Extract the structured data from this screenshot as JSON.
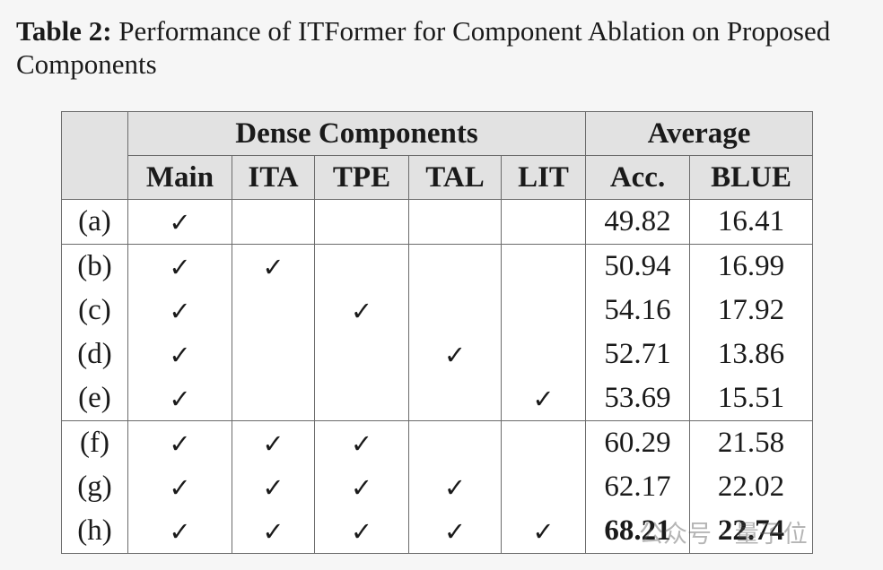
{
  "caption": {
    "label": "Table 2:",
    "text": "Performance of ITFormer for Component Ablation on Proposed Components"
  },
  "table": {
    "group_headers": [
      "Dense Components",
      "Average"
    ],
    "column_headers": [
      "Main",
      "ITA",
      "TPE",
      "TAL",
      "LIT",
      "Acc.",
      "BLUE"
    ],
    "groups": [
      [
        {
          "label": "(a)",
          "cells": [
            "✓",
            null,
            null,
            null,
            null,
            "49.82",
            "16.41"
          ]
        }
      ],
      [
        {
          "label": "(b)",
          "cells": [
            "✓",
            "✓",
            null,
            null,
            null,
            "50.94",
            "16.99"
          ]
        },
        {
          "label": "(c)",
          "cells": [
            "✓",
            null,
            "✓",
            null,
            null,
            "54.16",
            "17.92"
          ]
        },
        {
          "label": "(d)",
          "cells": [
            "✓",
            null,
            null,
            "✓",
            null,
            "52.71",
            "13.86"
          ]
        },
        {
          "label": "(e)",
          "cells": [
            "✓",
            null,
            null,
            null,
            "✓",
            "53.69",
            "15.51"
          ]
        }
      ],
      [
        {
          "label": "(f)",
          "cells": [
            "✓",
            "✓",
            "✓",
            null,
            null,
            "60.29",
            "21.58"
          ]
        },
        {
          "label": "(g)",
          "cells": [
            "✓",
            "✓",
            "✓",
            "✓",
            null,
            "62.17",
            "22.02"
          ]
        },
        {
          "label": "(h)",
          "cells": [
            "✓",
            "✓",
            "✓",
            "✓",
            "✓",
            "68.21",
            "22.74"
          ],
          "bold": true
        }
      ]
    ]
  },
  "watermark": "公众号 · 量子位"
}
